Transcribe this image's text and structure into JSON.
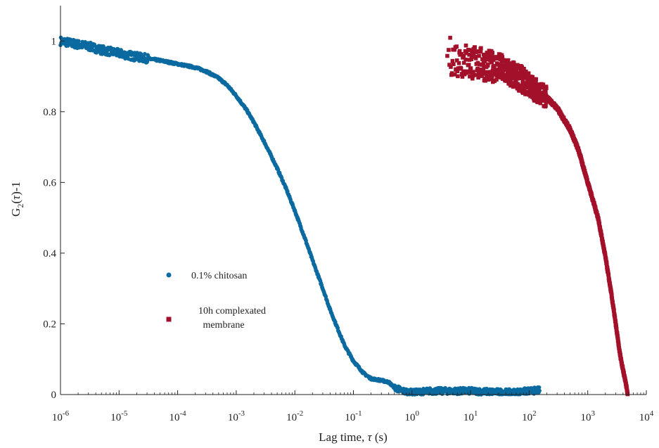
{
  "chart_data": {
    "type": "scatter",
    "x_scale": "log",
    "xlim": [
      1e-06,
      10000
    ],
    "ylim": [
      0,
      1.1
    ],
    "x_ticks": [
      {
        "value": 1e-06,
        "base": "10",
        "exp": "-6"
      },
      {
        "value": 1e-05,
        "base": "10",
        "exp": "-5"
      },
      {
        "value": 0.0001,
        "base": "10",
        "exp": "-4"
      },
      {
        "value": 0.001,
        "base": "10",
        "exp": "-3"
      },
      {
        "value": 0.01,
        "base": "10",
        "exp": "-2"
      },
      {
        "value": 0.1,
        "base": "10",
        "exp": "-1"
      },
      {
        "value": 1,
        "base": "10",
        "exp": "0"
      },
      {
        "value": 10,
        "base": "10",
        "exp": "1"
      },
      {
        "value": 100,
        "base": "10",
        "exp": "2"
      },
      {
        "value": 1000,
        "base": "10",
        "exp": "3"
      },
      {
        "value": 10000,
        "base": "10",
        "exp": "4"
      }
    ],
    "y_ticks": [
      {
        "value": 0,
        "label": "0"
      },
      {
        "value": 0.2,
        "label": "0.2"
      },
      {
        "value": 0.4,
        "label": "0.4"
      },
      {
        "value": 0.6,
        "label": "0.6"
      },
      {
        "value": 0.8,
        "label": "0.8"
      },
      {
        "value": 1,
        "label": "1"
      }
    ],
    "xlabel": {
      "text": "Lag time, ",
      "symbol": "τ",
      "unit": " (s)"
    },
    "ylabel": {
      "prefix": "G",
      "sub": "2",
      "open": "(",
      "symbol": "τ",
      "close": ")-1"
    },
    "grid": false,
    "legend_position": "center-left",
    "series": [
      {
        "name": "0.1% chitosan",
        "marker": "circle",
        "color": "#0b6aa0",
        "x": [
          1e-06,
          2e-06,
          3e-06,
          5e-06,
          1e-05,
          2e-05,
          5e-05,
          0.0001,
          0.0002,
          0.0003,
          0.0005,
          0.0007,
          0.001,
          0.0015,
          0.002,
          0.003,
          0.005,
          0.007,
          0.01,
          0.015,
          0.02,
          0.03,
          0.04,
          0.05,
          0.07,
          0.1,
          0.15,
          0.2,
          0.3,
          0.4,
          0.5,
          0.7,
          1,
          2,
          5,
          10,
          20,
          50,
          100,
          150
        ],
        "y": [
          1.0,
          0.99,
          0.985,
          0.975,
          0.965,
          0.955,
          0.945,
          0.935,
          0.925,
          0.915,
          0.895,
          0.875,
          0.845,
          0.805,
          0.77,
          0.715,
          0.64,
          0.585,
          0.52,
          0.44,
          0.38,
          0.3,
          0.24,
          0.2,
          0.14,
          0.095,
          0.06,
          0.045,
          0.04,
          0.035,
          0.02,
          0.01,
          0.005,
          0.01,
          0.01,
          0.01,
          0.008,
          0.006,
          0.01,
          0.012
        ]
      },
      {
        "name": "10h complexated membrane",
        "marker": "square",
        "color": "#a3102a",
        "x": [
          4,
          5,
          6,
          8,
          10,
          15,
          20,
          30,
          40,
          50,
          70,
          100,
          150,
          200,
          300,
          500,
          700,
          1000,
          1500,
          2000,
          2500,
          3000,
          3500,
          4000,
          4500,
          4800
        ],
        "y": [
          0.96,
          0.955,
          0.95,
          0.945,
          0.94,
          0.935,
          0.93,
          0.925,
          0.915,
          0.905,
          0.895,
          0.875,
          0.855,
          0.84,
          0.81,
          0.75,
          0.69,
          0.6,
          0.5,
          0.39,
          0.29,
          0.2,
          0.12,
          0.07,
          0.03,
          0.0
        ]
      }
    ]
  }
}
